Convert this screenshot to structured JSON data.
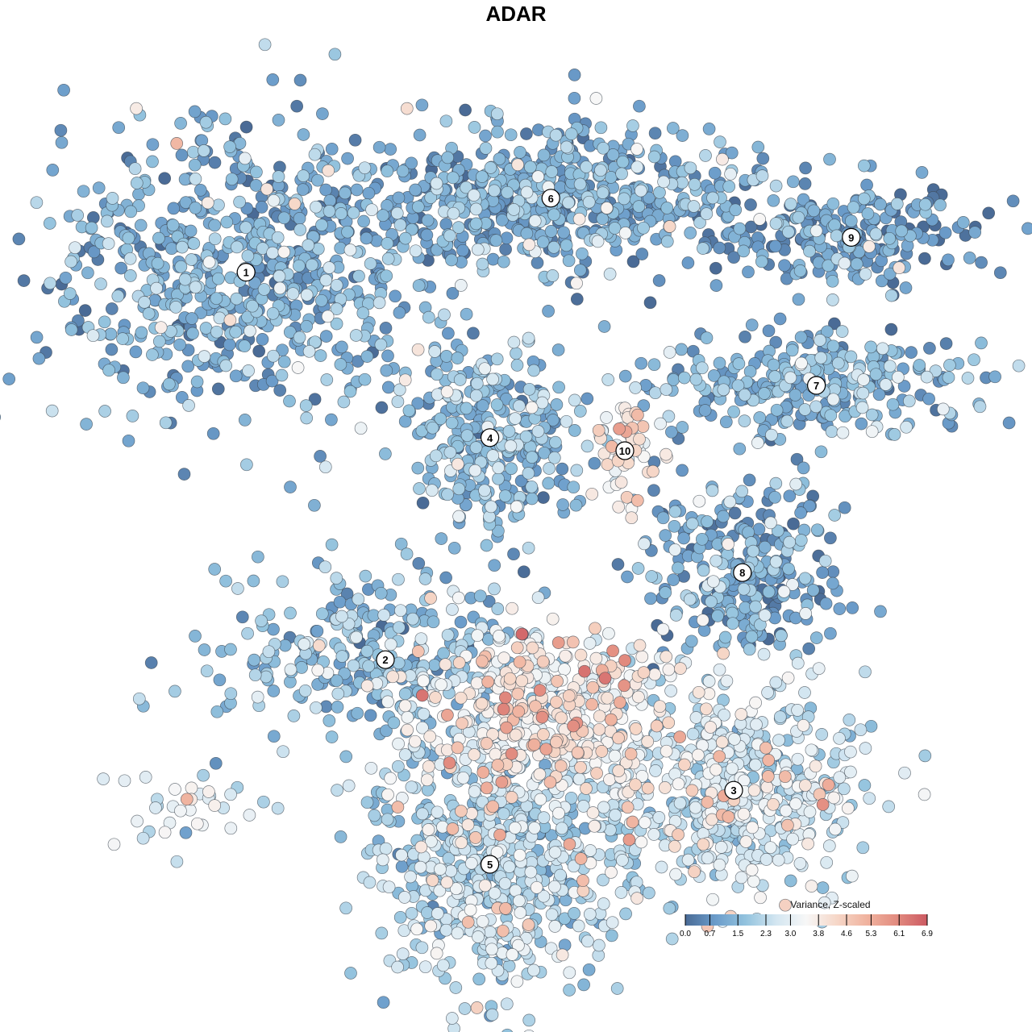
{
  "chart_data": {
    "type": "scatter",
    "title": "ADAR",
    "xlabel": "",
    "ylabel": "",
    "grid": false,
    "legend": {
      "title": "Variance, Z-scaled",
      "placement": "bottom-right",
      "ticks": [
        "0.0",
        "0.7",
        "1.5",
        "2.3",
        "3.0",
        "3.8",
        "4.6",
        "5.3",
        "6.1",
        "6.9"
      ],
      "range": [
        0.0,
        6.9
      ],
      "colors": [
        "#4a6b96",
        "#6b9cca",
        "#93c3de",
        "#d3e6f1",
        "#f7f7f7",
        "#f6d7c8",
        "#f0b39f",
        "#e28b7f",
        "#cc5a62"
      ]
    },
    "clusters": [
      {
        "label": "1",
        "x": -0.62,
        "y": 0.56,
        "mean": 1.2,
        "spread": [
          0.22,
          0.16
        ],
        "n": 720
      },
      {
        "label": "6",
        "x": 0.08,
        "y": 0.73,
        "mean": 1.2,
        "spread": [
          0.24,
          0.08
        ],
        "n": 600
      },
      {
        "label": "4",
        "x": -0.06,
        "y": 0.18,
        "mean": 1.5,
        "spread": [
          0.1,
          0.11
        ],
        "n": 320
      },
      {
        "label": "10",
        "x": 0.25,
        "y": 0.15,
        "mean": 3.7,
        "spread": [
          0.04,
          0.06
        ],
        "n": 55
      },
      {
        "label": "9",
        "x": 0.77,
        "y": 0.64,
        "mean": 0.9,
        "spread": [
          0.14,
          0.06
        ],
        "n": 220
      },
      {
        "label": "7",
        "x": 0.69,
        "y": 0.3,
        "mean": 1.3,
        "spread": [
          0.19,
          0.06
        ],
        "n": 300
      },
      {
        "label": "8",
        "x": 0.52,
        "y": -0.13,
        "mean": 1.0,
        "spread": [
          0.11,
          0.11
        ],
        "n": 300
      },
      {
        "label": "2",
        "x": -0.3,
        "y": -0.33,
        "mean": 1.6,
        "spread": [
          0.2,
          0.1
        ],
        "n": 320
      },
      {
        "label": "3",
        "x": 0.5,
        "y": -0.63,
        "mean": 2.5,
        "spread": [
          0.16,
          0.12
        ],
        "n": 520
      },
      {
        "label": "5",
        "x": -0.06,
        "y": -0.8,
        "mean": 2.2,
        "spread": [
          0.15,
          0.14
        ],
        "n": 620
      },
      {
        "label": "",
        "x": 0.08,
        "y": -0.45,
        "mean": 3.6,
        "spread": [
          0.15,
          0.09
        ],
        "n": 420
      },
      {
        "label": "",
        "x": -0.78,
        "y": -0.68,
        "mean": 2.9,
        "spread": [
          0.09,
          0.04
        ],
        "n": 35
      }
    ],
    "xlim": [
      -1.1,
      1.1
    ],
    "ylim": [
      -1.1,
      1.1
    ]
  }
}
